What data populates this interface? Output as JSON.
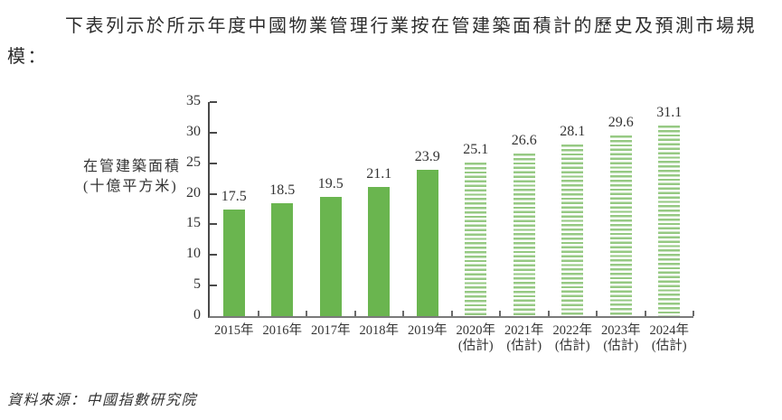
{
  "heading": {
    "full": "下表列示於所示年度中國物業管理行業按在管建築面積計的歷史及預測市場規模：",
    "lines": [
      "下表列示於所示年度中國物業管理行業按在管建築面積計的歷史及預測市場規",
      "模："
    ]
  },
  "source": "資料來源：中國指數研究院",
  "chart_data": {
    "type": "bar",
    "title": "",
    "ylabel_lines": [
      "在管建築面積",
      "(十億平方米)"
    ],
    "ylabel": "在管建築面積(十億平方米)",
    "xlabel": "",
    "ylim": [
      0,
      35
    ],
    "yticks": [
      0,
      5,
      10,
      15,
      20,
      25,
      30,
      35
    ],
    "grid": false,
    "legend": "none",
    "categories": [
      "2015年",
      "2016年",
      "2017年",
      "2018年",
      "2019年",
      "2020年",
      "2021年",
      "2022年",
      "2023年",
      "2024年"
    ],
    "category_sublabels": [
      "",
      "",
      "",
      "",
      "",
      "(估計)",
      "(估計)",
      "(估計)",
      "(估計)",
      "(估計)"
    ],
    "values": [
      17.5,
      18.5,
      19.5,
      21.1,
      23.9,
      25.1,
      26.6,
      28.1,
      29.6,
      31.1
    ],
    "value_labels": [
      "17.5",
      "18.5",
      "19.5",
      "21.1",
      "23.9",
      "25.1",
      "26.6",
      "28.1",
      "29.6",
      "31.1"
    ],
    "estimated": [
      false,
      false,
      false,
      false,
      false,
      true,
      true,
      true,
      true,
      true
    ],
    "bar_color_solid": "#6ab54f",
    "bar_color_stripe": "#96c983",
    "axis_color": "#4a4a4a",
    "text_color": "#333333"
  }
}
